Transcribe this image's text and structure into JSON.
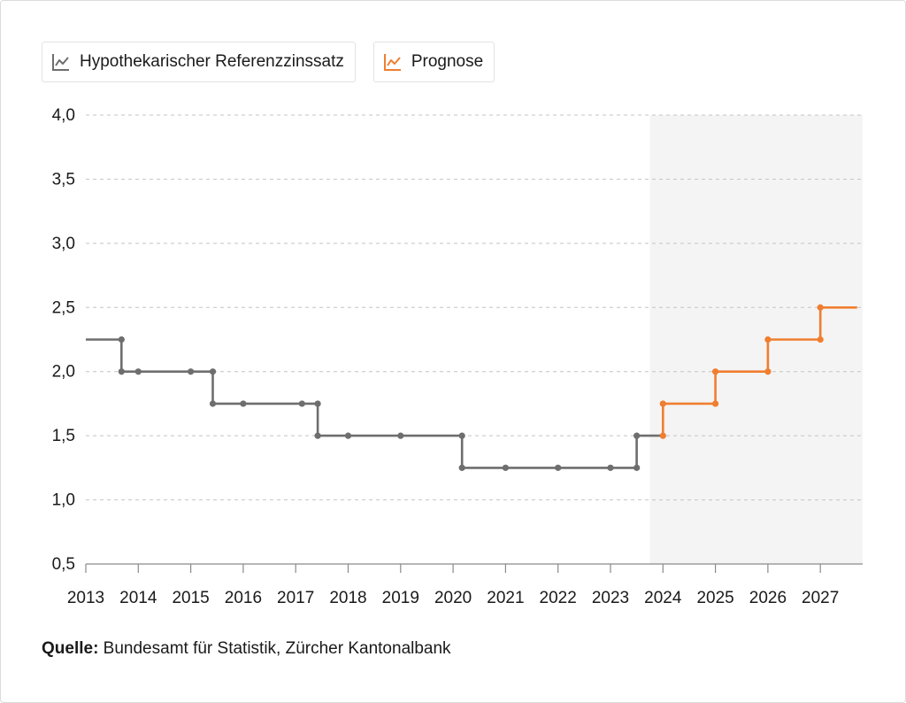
{
  "legend": {
    "series1": "Hypothekarischer Referenzzinssatz",
    "series2": "Prognose",
    "series1_color": "#6e6e6e",
    "series2_color": "#f07e2f"
  },
  "source": {
    "label": "Quelle:",
    "text": " Bundesamt für Statistik, Zürcher Kantonalbank"
  },
  "chart_data": {
    "type": "line",
    "step": true,
    "title": "",
    "xlabel": "",
    "ylabel": "",
    "ylim": [
      0.5,
      4.0
    ],
    "xlim": [
      2013,
      2027.7
    ],
    "y_ticks": [
      "4,0",
      "3,5",
      "3,0",
      "2,5",
      "2,0",
      "1,5",
      "1,0",
      "0,5"
    ],
    "y_tick_values": [
      4.0,
      3.5,
      3.0,
      2.5,
      2.0,
      1.5,
      1.0,
      0.5
    ],
    "x_ticks": [
      "2013",
      "2014",
      "2015",
      "2016",
      "2017",
      "2018",
      "2019",
      "2020",
      "2021",
      "2022",
      "2023",
      "2024",
      "2025",
      "2026",
      "2027"
    ],
    "grid": true,
    "forecast_band": {
      "from": 2023.75,
      "to": 2027.7,
      "color": "#f4f4f4"
    },
    "series": [
      {
        "name": "Hypothekarischer Referenzzinssatz",
        "color": "#6e6e6e",
        "steps": [
          {
            "x": 2013.0,
            "y": 2.25,
            "dot": false
          },
          {
            "x": 2013.68,
            "y": 2.25
          },
          {
            "x": 2013.68,
            "y": 2.0
          },
          {
            "x": 2014.0,
            "y": 2.0
          },
          {
            "x": 2015.0,
            "y": 2.0
          },
          {
            "x": 2015.42,
            "y": 2.0
          },
          {
            "x": 2015.42,
            "y": 1.75
          },
          {
            "x": 2016.0,
            "y": 1.75
          },
          {
            "x": 2017.12,
            "y": 1.75
          },
          {
            "x": 2017.42,
            "y": 1.75
          },
          {
            "x": 2017.42,
            "y": 1.5
          },
          {
            "x": 2018.0,
            "y": 1.5
          },
          {
            "x": 2019.0,
            "y": 1.5
          },
          {
            "x": 2020.17,
            "y": 1.5
          },
          {
            "x": 2020.17,
            "y": 1.25
          },
          {
            "x": 2021.0,
            "y": 1.25
          },
          {
            "x": 2022.0,
            "y": 1.25
          },
          {
            "x": 2023.0,
            "y": 1.25
          },
          {
            "x": 2023.5,
            "y": 1.25
          },
          {
            "x": 2023.5,
            "y": 1.5
          },
          {
            "x": 2024.0,
            "y": 1.5,
            "dot": false
          }
        ]
      },
      {
        "name": "Prognose",
        "color": "#f07e2f",
        "steps": [
          {
            "x": 2024.0,
            "y": 1.5
          },
          {
            "x": 2024.0,
            "y": 1.75
          },
          {
            "x": 2025.0,
            "y": 1.75
          },
          {
            "x": 2025.0,
            "y": 2.0
          },
          {
            "x": 2026.0,
            "y": 2.0
          },
          {
            "x": 2026.0,
            "y": 2.25
          },
          {
            "x": 2027.0,
            "y": 2.25
          },
          {
            "x": 2027.0,
            "y": 2.5
          },
          {
            "x": 2027.7,
            "y": 2.5,
            "dot": false
          }
        ]
      }
    ]
  }
}
